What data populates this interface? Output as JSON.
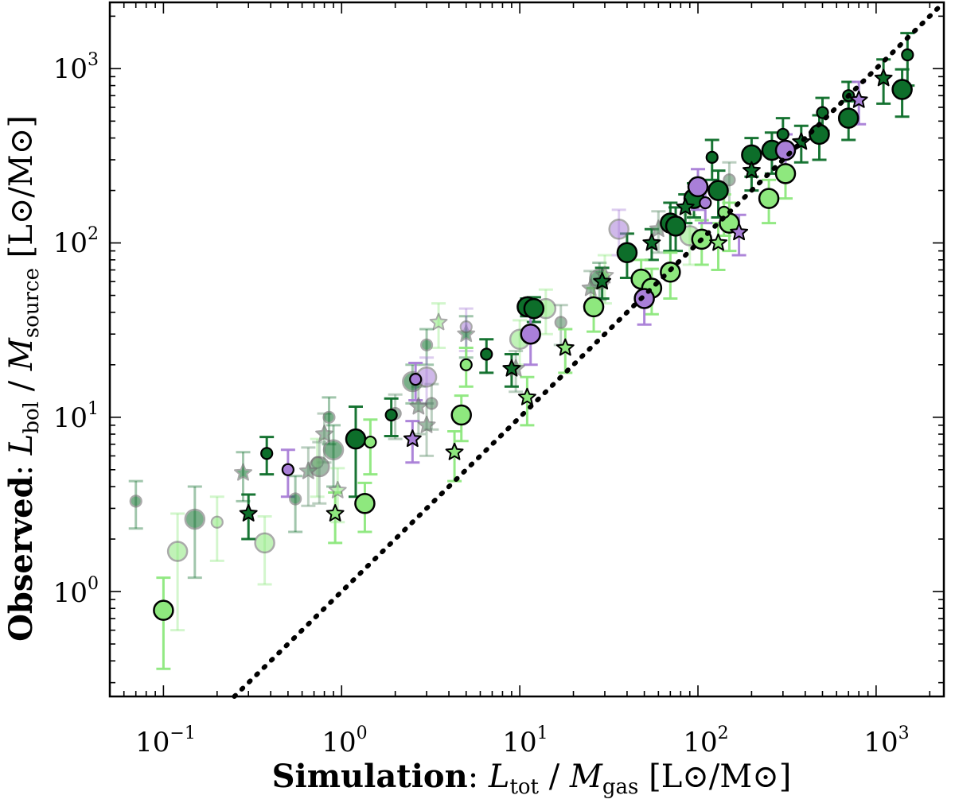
{
  "chart_data": {
    "type": "scatter",
    "title": "",
    "xlabel": {
      "bold": "Simulation",
      "sep": ": ",
      "var1": "L",
      "var1_sub": "tot",
      "slash": " / ",
      "var2": "M",
      "var2_sub": "gas",
      "unit": " [L⊙/M⊙]"
    },
    "ylabel": {
      "bold": "Observed",
      "sep": ": ",
      "var1": "L",
      "var1_sub": "bol",
      "slash": " / ",
      "var2": "M",
      "var2_sub": "source",
      "unit": " [L⊙/M⊙]"
    },
    "xscale": "log",
    "yscale": "log",
    "xlim": [
      0.05,
      2400
    ],
    "ylim": [
      0.25,
      2400
    ],
    "x_ticks": [
      {
        "base": "10",
        "exp": "−1",
        "value": 0.1
      },
      {
        "base": "10",
        "exp": "0",
        "value": 1
      },
      {
        "base": "10",
        "exp": "1",
        "value": 10
      },
      {
        "base": "10",
        "exp": "2",
        "value": 100
      },
      {
        "base": "10",
        "exp": "3",
        "value": 1000
      }
    ],
    "y_ticks": [
      {
        "base": "10",
        "exp": "0",
        "value": 1
      },
      {
        "base": "10",
        "exp": "1",
        "value": 10
      },
      {
        "base": "10",
        "exp": "2",
        "value": 100
      },
      {
        "base": "10",
        "exp": "3",
        "value": 1000
      }
    ],
    "grid": false,
    "one_to_one_line": {
      "style": "dotted",
      "color": "#000000"
    },
    "colors": {
      "dark_green": "#0d6e2a",
      "light_green": "#8ee87e",
      "purple": "#a97fd8",
      "gray_green": "#5e8f6c"
    },
    "series": [
      {
        "color": "#0d6e2a",
        "points": [
          [
            1.2,
            7.5,
            4,
            "circle",
            1
          ],
          [
            11,
            43,
            5,
            "circle",
            1
          ],
          [
            12,
            42,
            6.8,
            "circle",
            1
          ],
          [
            40,
            88,
            25,
            "circle",
            1
          ],
          [
            70,
            130,
            40,
            "circle",
            1
          ],
          [
            75,
            125,
            35,
            "circle",
            1
          ],
          [
            95,
            180,
            40,
            "circle",
            1
          ],
          [
            130,
            200,
            60,
            "circle",
            1
          ],
          [
            200,
            320,
            80,
            "circle",
            1
          ],
          [
            260,
            340,
            90,
            "circle",
            1
          ],
          [
            480,
            420,
            120,
            "circle",
            1
          ],
          [
            700,
            520,
            130,
            "circle",
            1
          ],
          [
            1400,
            760,
            230,
            "circle",
            1
          ],
          [
            0.38,
            6.2,
            1.5,
            "small",
            1
          ],
          [
            1.9,
            10.3,
            2.5,
            "small",
            1
          ],
          [
            6.5,
            23,
            5,
            "small",
            1
          ],
          [
            120,
            310,
            80,
            "small",
            1
          ],
          [
            300,
            420,
            100,
            "small",
            1
          ],
          [
            500,
            560,
            120,
            "small",
            1
          ],
          [
            700,
            700,
            140,
            "small",
            1
          ],
          [
            1500,
            1200,
            400,
            "small",
            1
          ],
          [
            0.3,
            2.8,
            0.8,
            "star",
            1
          ],
          [
            9,
            19,
            4,
            "star",
            1
          ],
          [
            29,
            60,
            12,
            "star",
            1
          ],
          [
            55,
            100,
            20,
            "star",
            1
          ],
          [
            85,
            160,
            30,
            "star",
            1
          ],
          [
            200,
            260,
            60,
            "star",
            1
          ],
          [
            380,
            380,
            90,
            "star",
            1
          ],
          [
            1100,
            880,
            250,
            "star",
            1
          ],
          [
            0.07,
            3.3,
            1,
            "small",
            0.55
          ],
          [
            0.15,
            2.6,
            1.4,
            "circle",
            0.55
          ],
          [
            0.55,
            3.4,
            1.2,
            "small",
            0.55
          ],
          [
            0.9,
            6.5,
            2.5,
            "circle",
            0.55
          ],
          [
            2.5,
            16,
            4,
            "circle",
            0.55
          ],
          [
            3,
            26,
            6,
            "small",
            0.55
          ],
          [
            28,
            62,
            15,
            "circle",
            0.55
          ],
          [
            0.28,
            4.8,
            1.5,
            "star",
            0.55
          ],
          [
            0.85,
            10,
            3,
            "small",
            0.55
          ],
          [
            5,
            30,
            8,
            "star",
            0.55
          ]
        ]
      },
      {
        "color": "#8ee87e",
        "points": [
          [
            0.1,
            0.78,
            0.42,
            "circle",
            1
          ],
          [
            1.35,
            3.2,
            1,
            "circle",
            1
          ],
          [
            4.7,
            10.3,
            3,
            "circle",
            1
          ],
          [
            26,
            43,
            12,
            "circle",
            1
          ],
          [
            48,
            62,
            18,
            "circle",
            1
          ],
          [
            55,
            55,
            16,
            "circle",
            1
          ],
          [
            70,
            68,
            20,
            "circle",
            1
          ],
          [
            105,
            105,
            30,
            "circle",
            1
          ],
          [
            150,
            130,
            40,
            "circle",
            1
          ],
          [
            250,
            180,
            50,
            "circle",
            1
          ],
          [
            310,
            250,
            70,
            "circle",
            1
          ],
          [
            0.92,
            2.8,
            0.9,
            "star",
            1
          ],
          [
            4.3,
            6.3,
            2,
            "star",
            1
          ],
          [
            11,
            13,
            4,
            "star",
            1
          ],
          [
            18,
            25,
            7,
            "star",
            1
          ],
          [
            130,
            100,
            30,
            "star",
            1
          ],
          [
            1.45,
            7.2,
            2.5,
            "small",
            1
          ],
          [
            5,
            20,
            5,
            "small",
            1
          ],
          [
            140,
            150,
            40,
            "small",
            1
          ],
          [
            0.12,
            1.7,
            1.1,
            "circle",
            0.55
          ],
          [
            0.37,
            1.9,
            0.8,
            "circle",
            0.55
          ],
          [
            0.2,
            2.5,
            1,
            "small",
            0.55
          ],
          [
            0.95,
            3.8,
            1.3,
            "star",
            0.55
          ],
          [
            0.73,
            5.5,
            2,
            "small",
            0.55
          ],
          [
            10,
            28,
            8,
            "circle",
            0.55
          ],
          [
            14,
            42,
            12,
            "circle",
            0.55
          ],
          [
            30,
            65,
            20,
            "star",
            0.55
          ],
          [
            3.5,
            35,
            10,
            "star",
            0.55
          ],
          [
            90,
            110,
            35,
            "circle",
            0.55
          ]
        ]
      },
      {
        "color": "#a97fd8",
        "points": [
          [
            11.5,
            30,
            10,
            "circle",
            1
          ],
          [
            50,
            48,
            14,
            "circle",
            1
          ],
          [
            100,
            210,
            55,
            "circle",
            1
          ],
          [
            310,
            340,
            80,
            "circle",
            1
          ],
          [
            110,
            170,
            40,
            "small",
            1
          ],
          [
            2.6,
            16.5,
            4,
            "small",
            1
          ],
          [
            0.5,
            5,
            1.5,
            "small",
            1
          ],
          [
            2.5,
            7.5,
            2,
            "star",
            1
          ],
          [
            170,
            115,
            30,
            "star",
            1
          ],
          [
            800,
            660,
            180,
            "star",
            1
          ],
          [
            3,
            17,
            5,
            "circle",
            0.55
          ],
          [
            36,
            120,
            35,
            "circle",
            0.55
          ],
          [
            5,
            33,
            9,
            "small",
            0.55
          ]
        ]
      },
      {
        "color": "#5e8f6c",
        "points": [
          [
            0.75,
            5.2,
            2,
            "circle",
            0.6
          ],
          [
            0.65,
            4.9,
            1.8,
            "star",
            0.6
          ],
          [
            2.7,
            11.5,
            3.5,
            "star",
            0.6
          ],
          [
            3.2,
            12,
            3.5,
            "small",
            0.6
          ],
          [
            9.5,
            19,
            5,
            "star",
            0.6
          ],
          [
            17,
            35,
            9,
            "small",
            0.6
          ],
          [
            25,
            55,
            14,
            "star",
            0.6
          ],
          [
            60,
            120,
            32,
            "star",
            0.6
          ],
          [
            150,
            230,
            60,
            "small",
            0.6
          ],
          [
            0.8,
            8,
            2.5,
            "star",
            0.6
          ],
          [
            2,
            10.5,
            3,
            "small",
            0.6
          ],
          [
            3,
            9,
            3,
            "star",
            0.6
          ]
        ]
      }
    ]
  }
}
